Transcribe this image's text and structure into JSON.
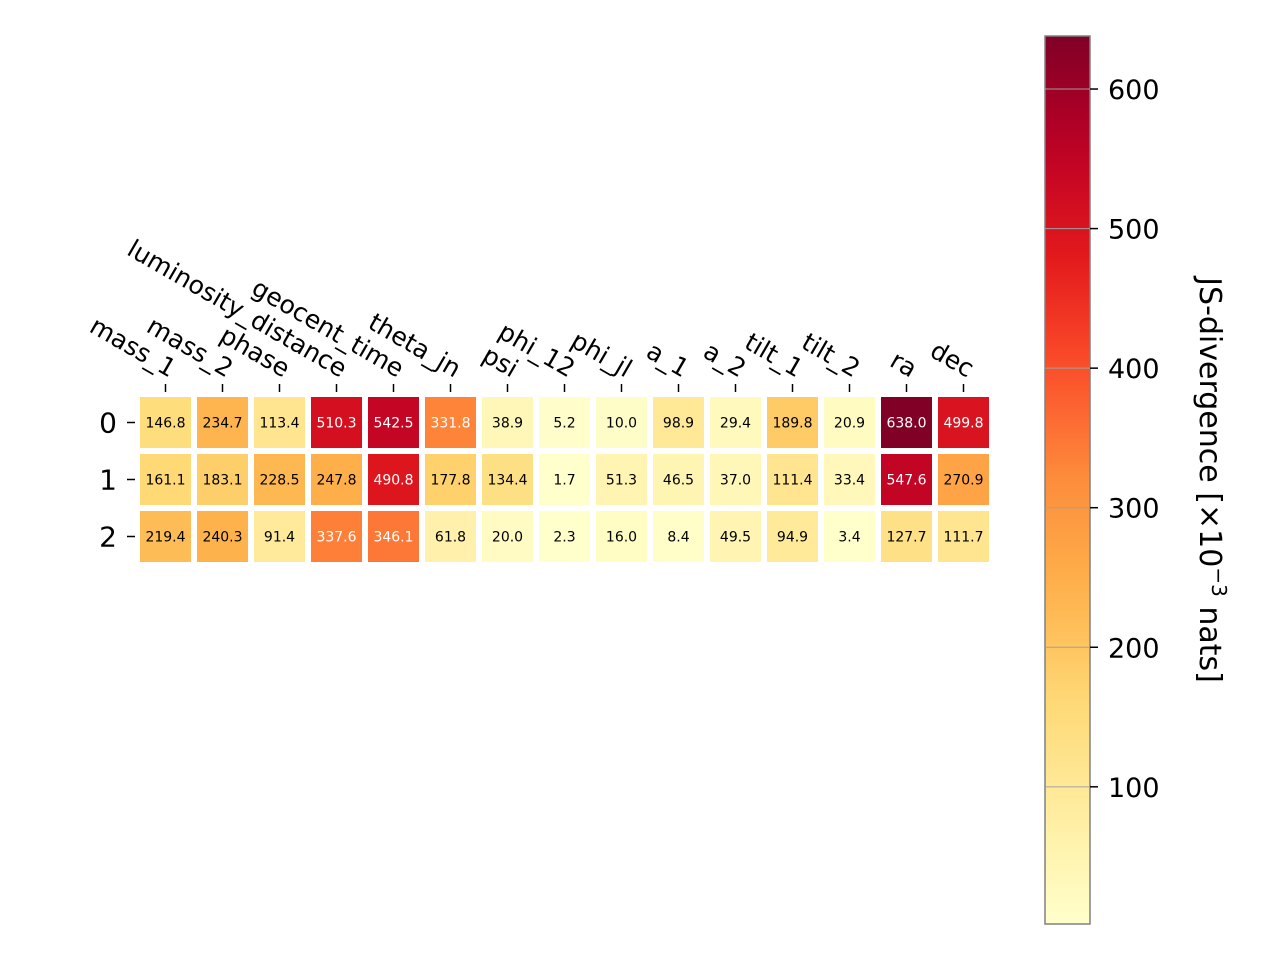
{
  "chart_data": {
    "type": "heatmap",
    "columns": [
      "mass_1",
      "mass_2",
      "phase",
      "luminosity_distance",
      "geocent_time",
      "theta_jn",
      "psi",
      "phi_12",
      "phi_jl",
      "a_1",
      "a_2",
      "tilt_1",
      "tilt_2",
      "ra",
      "dec"
    ],
    "rows": [
      "0",
      "1",
      "2"
    ],
    "values": [
      [
        146.8,
        234.7,
        113.4,
        510.3,
        542.5,
        331.8,
        38.9,
        5.2,
        10.0,
        98.9,
        29.4,
        189.8,
        20.9,
        638.0,
        499.8
      ],
      [
        161.1,
        183.1,
        228.5,
        247.8,
        490.8,
        177.8,
        134.4,
        1.7,
        51.3,
        46.5,
        37.0,
        111.4,
        33.4,
        547.6,
        270.9
      ],
      [
        219.4,
        240.3,
        91.4,
        337.6,
        346.1,
        61.8,
        20.0,
        2.3,
        16.0,
        8.4,
        49.5,
        94.9,
        3.4,
        127.7,
        111.7
      ]
    ],
    "value_labels": [
      [
        "146.8",
        "234.7",
        "113.4",
        "510.3",
        "542.5",
        "331.8",
        "38.9",
        "5.2",
        "10.0",
        "98.9",
        "29.4",
        "189.8",
        "20.9",
        "638.0",
        "499.8"
      ],
      [
        "161.1",
        "183.1",
        "228.5",
        "247.8",
        "490.8",
        "177.8",
        "134.4",
        "1.7",
        "51.3",
        "46.5",
        "37.0",
        "111.4",
        "33.4",
        "547.6",
        "270.9"
      ],
      [
        "219.4",
        "240.3",
        "91.4",
        "337.6",
        "346.1",
        "61.8",
        "20.0",
        "2.3",
        "16.0",
        "8.4",
        "49.5",
        "94.9",
        "3.4",
        "127.7",
        "111.7"
      ]
    ],
    "colormap": "YlOrRd",
    "colorbar": {
      "label_text": "JS-divergence [×10",
      "label_exponent": "−3",
      "label_suffix": " nats]",
      "range": [
        1.7,
        638.0
      ],
      "ticks": [
        100,
        200,
        300,
        400,
        500,
        600
      ],
      "tick_labels": [
        "100",
        "200",
        "300",
        "400",
        "500",
        "600"
      ]
    },
    "grid": false
  }
}
